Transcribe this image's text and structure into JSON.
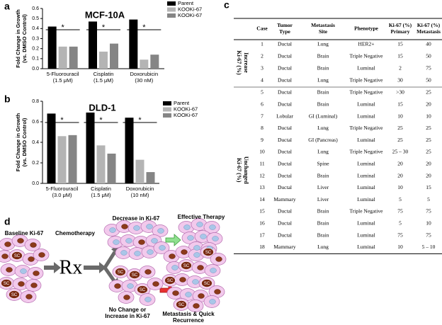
{
  "chart_data": [
    {
      "type": "bar",
      "panel_label": "a",
      "title": "MCF-10A",
      "y_label": [
        "Fold Change in Growth",
        "(vs. DMSO Control)"
      ],
      "categories": [
        [
          "5-Fluorouracil",
          "(1.5 μM)"
        ],
        [
          "Cisplatin",
          "(1.5 μM)"
        ],
        [
          "Doxorubicin",
          "(30 nM)"
        ]
      ],
      "series": [
        {
          "name": "Parent",
          "color": "#000000",
          "values": [
            0.42,
            0.47,
            0.49
          ]
        },
        {
          "name": "KOOKi-67",
          "color": "#b4b4b4",
          "values": [
            0.22,
            0.17,
            0.09
          ]
        },
        {
          "name": "KOOKi-67",
          "color": "#858585",
          "values": [
            0.22,
            0.25,
            0.14
          ]
        }
      ],
      "significance": [
        "*",
        "*",
        "*"
      ],
      "ylim": [
        0,
        0.6
      ],
      "yticks": [
        {
          "value": 0,
          "label": "0.0"
        },
        0.1,
        0.2,
        0.3,
        0.4,
        0.5,
        0.6
      ],
      "legend": "upper right"
    },
    {
      "type": "bar",
      "panel_label": "b",
      "title": "DLD-1",
      "y_label": [
        "Fold Change in Growth",
        "(vs. DMSO Control)"
      ],
      "categories": [
        [
          "5-Fluorouracil",
          "(3.0 μM)"
        ],
        [
          "Cisplatin",
          "(1.5 μM)"
        ],
        [
          "Doxorubicin",
          "(10 nM)"
        ]
      ],
      "series": [
        {
          "name": "Parent",
          "color": "#000000",
          "values": [
            0.68,
            0.69,
            0.64
          ]
        },
        {
          "name": "KOOKi-67",
          "color": "#b4b4b4",
          "values": [
            0.46,
            0.37,
            0.23
          ]
        },
        {
          "name": "KOOKi-67",
          "color": "#858585",
          "values": [
            0.47,
            0.29,
            0.11
          ]
        }
      ],
      "significance": [
        "*",
        "*",
        "*"
      ],
      "ylim": [
        0,
        0.8
      ],
      "yticks": [
        {
          "value": 0,
          "label": "0.0"
        },
        0.2,
        0.4,
        0.6,
        0.8
      ],
      "legend": "upper right"
    }
  ],
  "table": {
    "panel_label": "c",
    "header": [
      [
        "Case"
      ],
      [
        "Tumor",
        "Type"
      ],
      [
        "Metastasis",
        "Site"
      ],
      [
        "Phenotype"
      ],
      [
        "Ki-67 (%)",
        "Primary"
      ],
      [
        "Ki-67 (%)",
        "Metastasis"
      ]
    ],
    "groups": [
      {
        "label": [
          "Ki-67 (%)",
          "Increase"
        ],
        "rows": [
          [
            1,
            "Ductal",
            "Lung",
            "HER2+",
            15,
            40
          ],
          [
            2,
            "Ductal",
            "Brain",
            "Triple Negative",
            15,
            50
          ],
          [
            3,
            "Ductal",
            "Brain",
            "Luminal",
            2,
            75
          ],
          [
            4,
            "Ductal",
            "Lung",
            "Triple Negative",
            30,
            50
          ]
        ]
      },
      {
        "label": [
          "Ki-67 (%)",
          "Unchanged"
        ],
        "rows": [
          [
            5,
            "Ductal",
            "Brain",
            "Triple Negative",
            ">30",
            25
          ],
          [
            6,
            "Ductal",
            "Brain",
            "Luminal",
            15,
            20
          ],
          [
            7,
            "Lobular",
            "GI (Luminal)",
            "Luminal",
            10,
            10
          ],
          [
            8,
            "Ductal",
            "Lung",
            "Triple Negative",
            25,
            25
          ],
          [
            9,
            "Ductal",
            "GI (Pancreas)",
            "Luminal",
            25,
            25
          ],
          [
            10,
            "Ductal",
            "Lung",
            "Triple Negative",
            "25 – 30",
            25
          ],
          [
            11,
            "Ductal",
            "Spine",
            "Luminal",
            20,
            20
          ],
          [
            12,
            "Ductal",
            "Brain",
            "Luminal",
            20,
            20
          ],
          [
            13,
            "Ductal",
            "Liver",
            "Luminal",
            10,
            15
          ],
          [
            14,
            "Mammary",
            "Liver",
            "Luminal",
            5,
            5
          ],
          [
            15,
            "Ductal",
            "Brain",
            "Triple Negative",
            75,
            75
          ],
          [
            16,
            "Ductal",
            "Brain",
            "Luminal",
            5,
            10
          ],
          [
            17,
            "Ductal",
            "Brain",
            "Luminal",
            75,
            75
          ],
          [
            18,
            "Mammary",
            "Lung",
            "Luminal",
            10,
            "5 – 10"
          ]
        ]
      }
    ]
  },
  "diagram": {
    "panel_label": "d",
    "baseline": "Baseline Ki-67",
    "treatment": "Chemotherapy",
    "rx_symbol": "Rx",
    "decrease": "Decrease in Ki-67",
    "effective": "Effective Therapy",
    "no_change": [
      "No Change or",
      "Increase in Ki-67"
    ],
    "metastasis": [
      "Metastasis & Quick",
      "Recurrence"
    ],
    "stem_cell_label": "SC"
  }
}
